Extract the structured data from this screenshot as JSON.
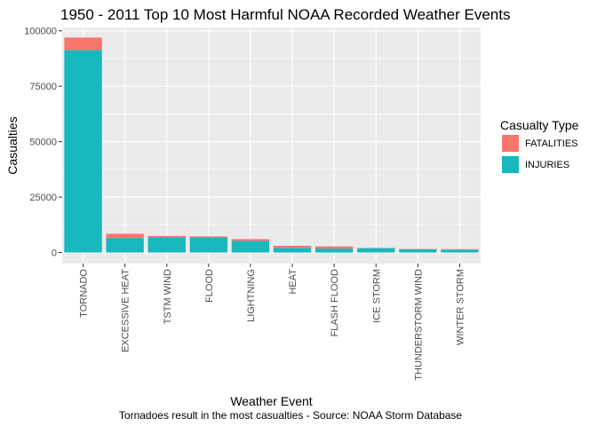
{
  "chart_data": {
    "type": "bar",
    "stacked": true,
    "title": "1950 - 2011 Top 10 Most Harmful NOAA Recorded Weather Events",
    "xlabel": "Weather Event",
    "ylabel": "Casualties",
    "caption": "Tornadoes result in the most casualties - Source: NOAA Storm Database",
    "categories": [
      "TORNADO",
      "EXCESSIVE HEAT",
      "TSTM WIND",
      "FLOOD",
      "LIGHTNING",
      "HEAT",
      "FLASH FLOOD",
      "ICE STORM",
      "THUNDERSTORM WIND",
      "WINTER STORM"
    ],
    "series": [
      {
        "name": "INJURIES",
        "color": "#17b8be",
        "values": [
          91346,
          6525,
          6957,
          6789,
          5230,
          2100,
          1777,
          1975,
          1488,
          1321
        ]
      },
      {
        "name": "FATALITIES",
        "color": "#f8766d",
        "values": [
          5633,
          1903,
          504,
          470,
          816,
          937,
          978,
          89,
          133,
          206
        ]
      }
    ],
    "ylim": [
      -5000,
      101500
    ],
    "yticks": [
      0,
      25000,
      50000,
      75000,
      100000
    ],
    "legend": {
      "title": "Casualty Type",
      "position": "right"
    },
    "grid": true
  }
}
